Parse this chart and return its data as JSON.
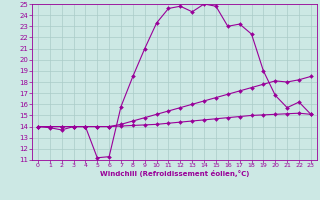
{
  "background_color": "#cce8e4",
  "grid_color": "#aaccc8",
  "line_color": "#990099",
  "xlabel": "Windchill (Refroidissement éolien,°C)",
  "xlim": [
    -0.5,
    23.5
  ],
  "ylim": [
    11,
    25
  ],
  "yticks": [
    11,
    12,
    13,
    14,
    15,
    16,
    17,
    18,
    19,
    20,
    21,
    22,
    23,
    24,
    25
  ],
  "xticks": [
    0,
    1,
    2,
    3,
    4,
    5,
    6,
    7,
    8,
    9,
    10,
    11,
    12,
    13,
    14,
    15,
    16,
    17,
    18,
    19,
    20,
    21,
    22,
    23
  ],
  "line1_x": [
    0,
    1,
    2,
    3,
    4,
    5,
    6,
    7,
    8,
    9,
    10,
    11,
    12,
    13,
    14,
    15,
    16,
    17,
    18,
    19,
    20,
    21,
    22,
    23
  ],
  "line1_y": [
    14.0,
    13.9,
    13.7,
    14.0,
    14.0,
    11.2,
    11.3,
    15.8,
    18.5,
    21.0,
    23.3,
    24.6,
    24.8,
    24.3,
    25.0,
    24.8,
    23.0,
    23.2,
    22.3,
    19.0,
    16.8,
    15.7,
    16.2,
    15.1
  ],
  "line2_x": [
    0,
    1,
    2,
    3,
    4,
    5,
    6,
    7,
    8,
    9,
    10,
    11,
    12,
    13,
    14,
    15,
    16,
    17,
    18,
    19,
    20,
    21,
    22,
    23
  ],
  "line2_y": [
    14.0,
    14.0,
    14.0,
    14.0,
    14.0,
    14.0,
    14.0,
    14.2,
    14.5,
    14.8,
    15.1,
    15.4,
    15.7,
    16.0,
    16.3,
    16.6,
    16.9,
    17.2,
    17.5,
    17.8,
    18.1,
    18.0,
    18.2,
    18.5
  ],
  "line3_x": [
    0,
    1,
    2,
    3,
    4,
    5,
    6,
    7,
    8,
    9,
    10,
    11,
    12,
    13,
    14,
    15,
    16,
    17,
    18,
    19,
    20,
    21,
    22,
    23
  ],
  "line3_y": [
    14.0,
    14.0,
    14.0,
    14.0,
    14.0,
    14.0,
    14.0,
    14.05,
    14.1,
    14.15,
    14.2,
    14.3,
    14.4,
    14.5,
    14.6,
    14.7,
    14.8,
    14.9,
    15.0,
    15.05,
    15.1,
    15.15,
    15.2,
    15.1
  ]
}
